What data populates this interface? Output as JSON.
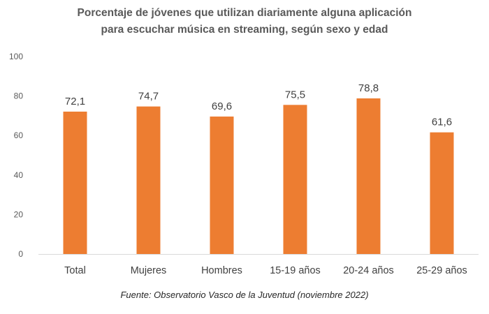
{
  "chart_data": {
    "type": "bar",
    "title_line1": "Porcentaje de jóvenes que utilizan diariamente alguna aplicación",
    "title_line2": "para escuchar música en streaming, según sexo y edad",
    "categories": [
      "Total",
      "Mujeres",
      "Hombres",
      "15-19 años",
      "20-24 años",
      "25-29 años"
    ],
    "values": [
      72.1,
      74.7,
      69.6,
      75.5,
      78.8,
      61.6
    ],
    "data_labels": [
      "72,1",
      "74,7",
      "69,6",
      "75,5",
      "78,8",
      "61,6"
    ],
    "yticks": [
      "0",
      "20",
      "40",
      "60",
      "80",
      "100"
    ],
    "ylim": [
      0,
      100
    ],
    "grid": false,
    "legend": "none",
    "bar_color": "#ED7D31",
    "source": "Fuente: Observatorio Vasco de la Juventud (noviembre 2022)"
  }
}
